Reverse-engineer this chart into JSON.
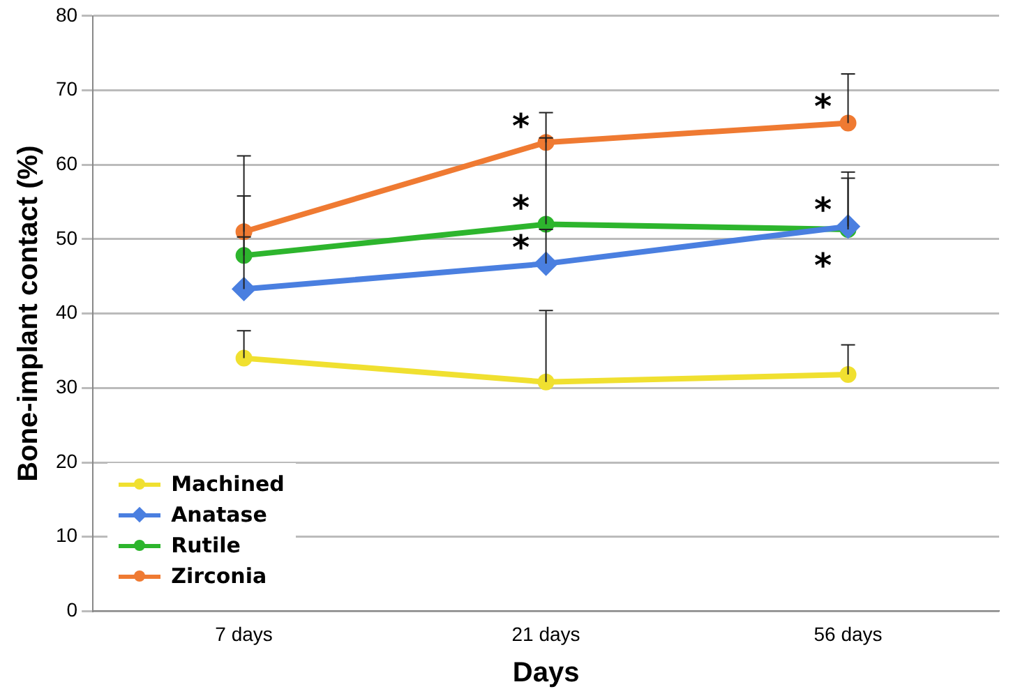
{
  "chart_data": {
    "type": "line",
    "xlabel": "Days",
    "ylabel": "Bone-implant contact (%)",
    "categories": [
      "7 days",
      "21 days",
      "56 days"
    ],
    "series": [
      {
        "name": "Machined",
        "color": "#f0e030",
        "marker": "circle",
        "values": [
          34,
          30.8,
          31.8
        ],
        "errors": [
          [
            34,
            37.7
          ],
          [
            30.8,
            40.4
          ],
          [
            31.8,
            35.8
          ]
        ]
      },
      {
        "name": "Anatase",
        "color": "#4a7fe0",
        "marker": "diamond",
        "values": [
          43.3,
          46.7,
          51.7
        ],
        "errors": [
          [
            43.3,
            50.3
          ],
          [
            46.7,
            51.3
          ],
          [
            51.7,
            59
          ]
        ]
      },
      {
        "name": "Rutile",
        "color": "#2db52d",
        "marker": "circle",
        "values": [
          47.8,
          52,
          51.3
        ],
        "errors": [
          [
            47.8,
            55.8
          ],
          [
            52,
            63.6
          ],
          [
            51.3,
            58.2
          ]
        ]
      },
      {
        "name": "Zirconia",
        "color": "#ef7a32",
        "marker": "circle",
        "values": [
          51,
          63,
          65.6
        ],
        "errors": [
          [
            51,
            61.2
          ],
          [
            63,
            67
          ],
          [
            65.6,
            72.2
          ]
        ]
      }
    ],
    "annotations": [
      {
        "text": "*",
        "x": "21 days",
        "y": 63
      },
      {
        "text": "*",
        "x": "21 days",
        "y": 52
      },
      {
        "text": "*",
        "x": "21 days",
        "y": 46.7
      },
      {
        "text": "*",
        "x": "56 days",
        "y": 65.6
      },
      {
        "text": "*",
        "x": "56 days",
        "y": 51.7
      },
      {
        "text": "*",
        "x": "56 days",
        "y": 51.3
      }
    ],
    "ylim": [
      0,
      80
    ],
    "yticks": [
      0,
      10,
      20,
      30,
      40,
      50,
      60,
      70,
      80
    ],
    "grid": "y",
    "legend": "bottom left",
    "line_style": "solid"
  }
}
